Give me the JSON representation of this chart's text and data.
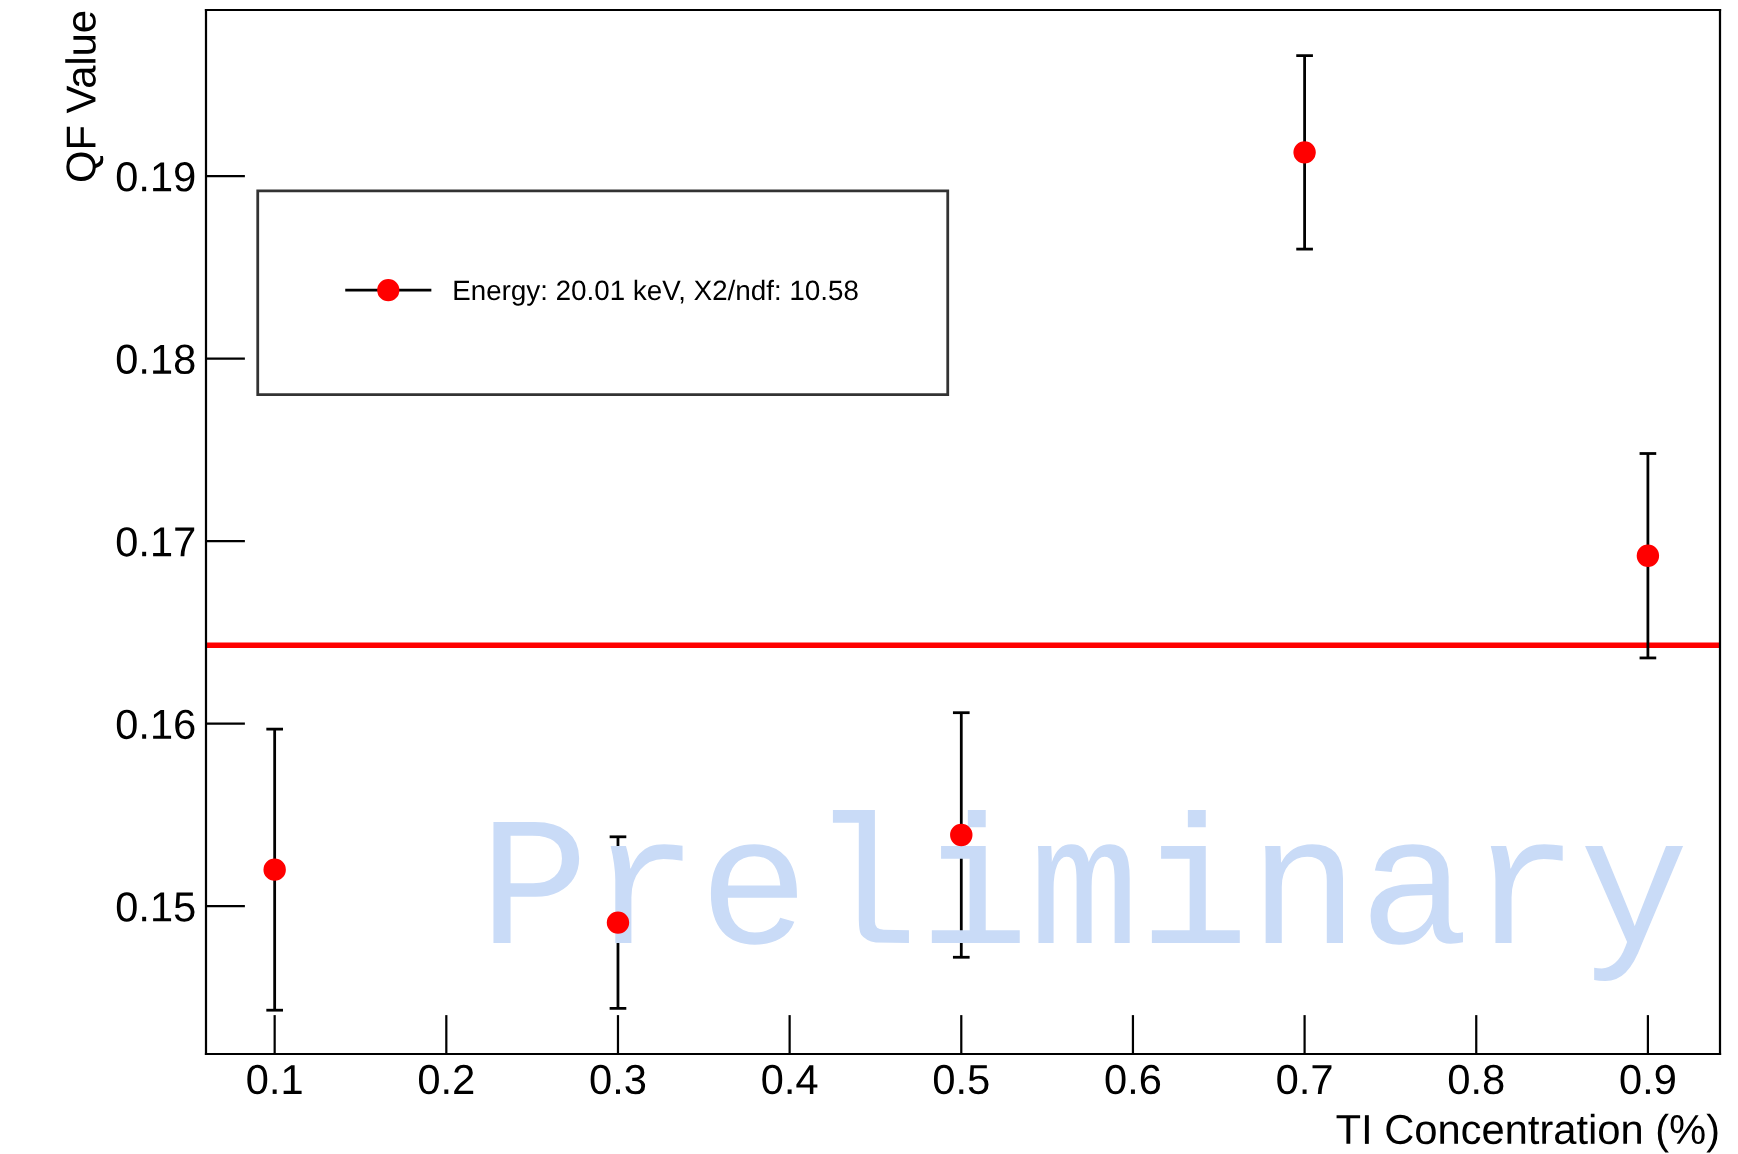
{
  "chart_data": {
    "type": "scatter",
    "xlabel": "TI Concentration (%)",
    "ylabel": "QF Value",
    "x": [
      0.1,
      0.3,
      0.5,
      0.7,
      0.9
    ],
    "series": [
      {
        "name": "Energy: 20.01 keV, X2/ndf: 10.58",
        "color": "#ff0000",
        "values": [
          0.152,
          0.1491,
          0.1539,
          0.1913,
          0.1692
        ],
        "errors": [
          0.0077,
          0.0047,
          0.0067,
          0.0053,
          0.0056
        ]
      }
    ],
    "ref_lines": [
      {
        "axis": "y",
        "value": 0.1643,
        "color": "#ff0000"
      }
    ],
    "xlim": [
      0.06,
      0.942
    ],
    "ylim": [
      0.1419,
      0.1991
    ],
    "xticks": [
      0.1,
      0.2,
      0.3,
      0.4,
      0.5,
      0.6,
      0.7,
      0.8,
      0.9
    ],
    "yticks": [
      0.15,
      0.16,
      0.17,
      0.18,
      0.19
    ],
    "annotations": [
      "Preliminary"
    ],
    "marker": "circle",
    "legend": "top left",
    "grid": false
  }
}
